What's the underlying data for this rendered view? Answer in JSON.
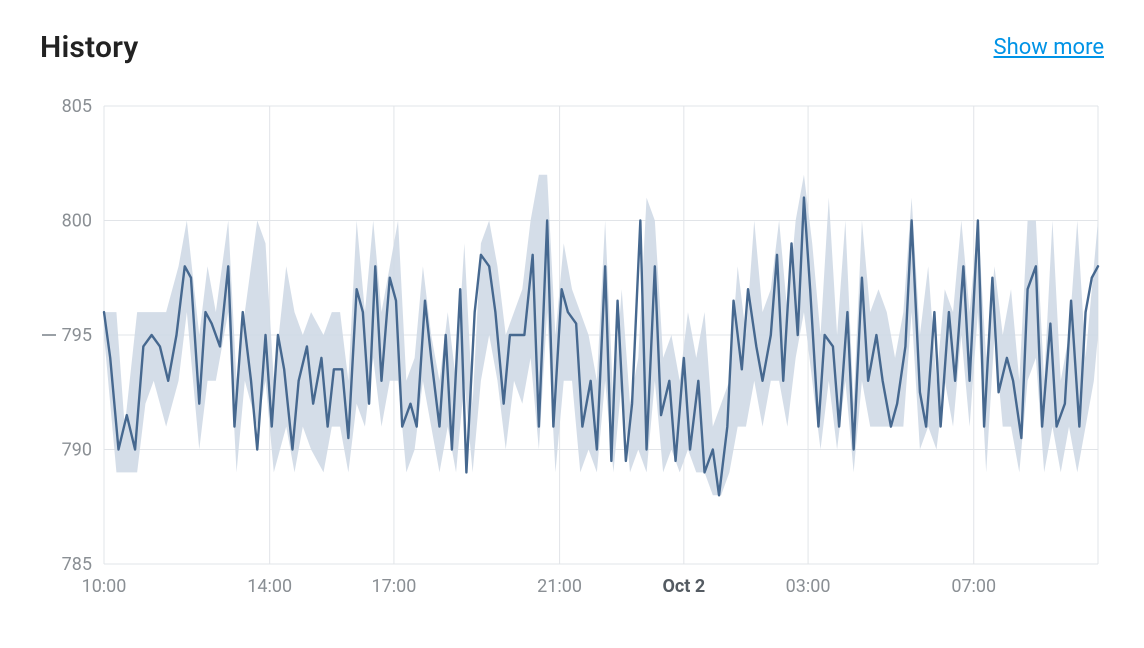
{
  "header": {
    "title": "History",
    "show_more_label": "Show more"
  },
  "chart": {
    "type": "line-with-band",
    "background_color": "#ffffff",
    "plot_border_color": "#e1e4e8",
    "grid_color": "#e1e4e8",
    "grid_width": 1,
    "axis_label_color": "#8a8f94",
    "axis_label_fontsize": 18,
    "x_bold_label_color": "#545b62",
    "band_fill_color": "#cfd9e6",
    "band_fill_opacity": 0.9,
    "line_color": "#46688f",
    "line_width": 2.4,
    "y": {
      "min": 785,
      "max": 805,
      "ticks": [
        785,
        790,
        795,
        800,
        805
      ],
      "reference": 795,
      "reference_dash_color": "#9aa0a6"
    },
    "x": {
      "min": 0,
      "max": 24,
      "ticks": [
        {
          "pos": 0,
          "label": "10:00",
          "bold": false
        },
        {
          "pos": 4,
          "label": "14:00",
          "bold": false
        },
        {
          "pos": 7,
          "label": "17:00",
          "bold": false
        },
        {
          "pos": 11,
          "label": "21:00",
          "bold": false
        },
        {
          "pos": 14,
          "label": "Oct 2",
          "bold": true
        },
        {
          "pos": 17,
          "label": "03:00",
          "bold": false
        },
        {
          "pos": 21,
          "label": "07:00",
          "bold": false
        }
      ]
    },
    "series_main": [
      [
        0.0,
        796.0
      ],
      [
        0.15,
        794.0
      ],
      [
        0.35,
        790.0
      ],
      [
        0.55,
        791.5
      ],
      [
        0.75,
        790.0
      ],
      [
        0.95,
        794.5
      ],
      [
        1.15,
        795.0
      ],
      [
        1.35,
        794.5
      ],
      [
        1.55,
        793.0
      ],
      [
        1.75,
        795.0
      ],
      [
        1.95,
        798.0
      ],
      [
        2.1,
        797.5
      ],
      [
        2.3,
        792.0
      ],
      [
        2.45,
        796.0
      ],
      [
        2.6,
        795.5
      ],
      [
        2.8,
        794.5
      ],
      [
        3.0,
        798.0
      ],
      [
        3.15,
        791.0
      ],
      [
        3.35,
        796.0
      ],
      [
        3.55,
        793.0
      ],
      [
        3.7,
        790.0
      ],
      [
        3.9,
        795.0
      ],
      [
        4.05,
        791.0
      ],
      [
        4.2,
        795.0
      ],
      [
        4.35,
        793.5
      ],
      [
        4.55,
        790.0
      ],
      [
        4.7,
        793.0
      ],
      [
        4.9,
        794.5
      ],
      [
        5.05,
        792.0
      ],
      [
        5.25,
        794.0
      ],
      [
        5.4,
        791.0
      ],
      [
        5.55,
        793.5
      ],
      [
        5.75,
        793.5
      ],
      [
        5.9,
        790.5
      ],
      [
        6.1,
        797.0
      ],
      [
        6.25,
        796.0
      ],
      [
        6.4,
        792.0
      ],
      [
        6.55,
        798.0
      ],
      [
        6.7,
        793.0
      ],
      [
        6.9,
        797.5
      ],
      [
        7.05,
        796.5
      ],
      [
        7.2,
        791.0
      ],
      [
        7.4,
        792.0
      ],
      [
        7.55,
        791.0
      ],
      [
        7.75,
        796.5
      ],
      [
        7.9,
        794.0
      ],
      [
        8.1,
        791.0
      ],
      [
        8.25,
        795.0
      ],
      [
        8.4,
        790.0
      ],
      [
        8.6,
        797.0
      ],
      [
        8.75,
        789.0
      ],
      [
        8.95,
        796.0
      ],
      [
        9.1,
        798.5
      ],
      [
        9.3,
        798.0
      ],
      [
        9.45,
        796.0
      ],
      [
        9.65,
        792.0
      ],
      [
        9.8,
        795.0
      ],
      [
        10.0,
        795.0
      ],
      [
        10.15,
        795.0
      ],
      [
        10.35,
        798.5
      ],
      [
        10.5,
        791.0
      ],
      [
        10.7,
        800.0
      ],
      [
        10.85,
        791.0
      ],
      [
        11.05,
        797.0
      ],
      [
        11.2,
        796.0
      ],
      [
        11.4,
        795.5
      ],
      [
        11.55,
        791.0
      ],
      [
        11.75,
        793.0
      ],
      [
        11.9,
        790.0
      ],
      [
        12.1,
        798.0
      ],
      [
        12.25,
        789.5
      ],
      [
        12.4,
        796.5
      ],
      [
        12.6,
        789.5
      ],
      [
        12.75,
        792.0
      ],
      [
        12.95,
        800.0
      ],
      [
        13.1,
        790.0
      ],
      [
        13.3,
        798.0
      ],
      [
        13.45,
        791.5
      ],
      [
        13.65,
        793.0
      ],
      [
        13.8,
        789.5
      ],
      [
        14.0,
        794.0
      ],
      [
        14.15,
        790.0
      ],
      [
        14.35,
        793.0
      ],
      [
        14.5,
        789.0
      ],
      [
        14.7,
        790.0
      ],
      [
        14.85,
        788.0
      ],
      [
        15.05,
        791.0
      ],
      [
        15.2,
        796.5
      ],
      [
        15.4,
        793.5
      ],
      [
        15.55,
        797.0
      ],
      [
        15.75,
        794.5
      ],
      [
        15.9,
        793.0
      ],
      [
        16.1,
        795.0
      ],
      [
        16.25,
        798.5
      ],
      [
        16.4,
        793.0
      ],
      [
        16.6,
        799.0
      ],
      [
        16.75,
        795.0
      ],
      [
        16.9,
        801.0
      ],
      [
        17.05,
        797.0
      ],
      [
        17.25,
        791.0
      ],
      [
        17.4,
        795.0
      ],
      [
        17.6,
        794.5
      ],
      [
        17.75,
        791.0
      ],
      [
        17.95,
        796.0
      ],
      [
        18.1,
        790.0
      ],
      [
        18.3,
        797.5
      ],
      [
        18.45,
        793.0
      ],
      [
        18.65,
        795.0
      ],
      [
        18.8,
        793.0
      ],
      [
        19.0,
        791.0
      ],
      [
        19.15,
        792.0
      ],
      [
        19.35,
        794.5
      ],
      [
        19.5,
        800.0
      ],
      [
        19.7,
        792.5
      ],
      [
        19.85,
        791.0
      ],
      [
        20.05,
        796.0
      ],
      [
        20.2,
        791.0
      ],
      [
        20.4,
        796.0
      ],
      [
        20.55,
        793.0
      ],
      [
        20.75,
        798.0
      ],
      [
        20.9,
        793.0
      ],
      [
        21.1,
        800.0
      ],
      [
        21.25,
        791.0
      ],
      [
        21.45,
        797.5
      ],
      [
        21.6,
        792.5
      ],
      [
        21.8,
        794.0
      ],
      [
        21.95,
        793.0
      ],
      [
        22.15,
        790.5
      ],
      [
        22.3,
        797.0
      ],
      [
        22.5,
        798.0
      ],
      [
        22.65,
        791.0
      ],
      [
        22.85,
        795.5
      ],
      [
        23.0,
        791.0
      ],
      [
        23.2,
        792.0
      ],
      [
        23.35,
        796.5
      ],
      [
        23.55,
        791.0
      ],
      [
        23.7,
        796.0
      ],
      [
        23.85,
        797.5
      ],
      [
        24.0,
        798.0
      ]
    ],
    "series_band_high": [
      [
        0.0,
        796.0
      ],
      [
        0.3,
        796.0
      ],
      [
        0.5,
        791.0
      ],
      [
        0.8,
        796.0
      ],
      [
        1.0,
        796.0
      ],
      [
        1.2,
        796.0
      ],
      [
        1.5,
        796.0
      ],
      [
        1.8,
        798.0
      ],
      [
        2.0,
        800.0
      ],
      [
        2.3,
        795.0
      ],
      [
        2.5,
        798.0
      ],
      [
        2.7,
        796.0
      ],
      [
        3.0,
        800.0
      ],
      [
        3.2,
        793.0
      ],
      [
        3.4,
        796.0
      ],
      [
        3.7,
        800.0
      ],
      [
        3.9,
        799.0
      ],
      [
        4.1,
        793.0
      ],
      [
        4.4,
        798.0
      ],
      [
        4.6,
        796.0
      ],
      [
        4.8,
        795.0
      ],
      [
        5.0,
        796.0
      ],
      [
        5.3,
        795.0
      ],
      [
        5.5,
        796.0
      ],
      [
        5.7,
        796.0
      ],
      [
        5.9,
        793.0
      ],
      [
        6.1,
        800.0
      ],
      [
        6.3,
        796.0
      ],
      [
        6.5,
        800.0
      ],
      [
        6.7,
        796.0
      ],
      [
        6.9,
        798.0
      ],
      [
        7.1,
        800.0
      ],
      [
        7.3,
        793.0
      ],
      [
        7.5,
        794.0
      ],
      [
        7.7,
        798.0
      ],
      [
        7.9,
        795.0
      ],
      [
        8.1,
        793.0
      ],
      [
        8.3,
        796.0
      ],
      [
        8.5,
        793.0
      ],
      [
        8.7,
        799.0
      ],
      [
        8.9,
        792.0
      ],
      [
        9.1,
        799.0
      ],
      [
        9.3,
        800.0
      ],
      [
        9.5,
        798.0
      ],
      [
        9.7,
        795.0
      ],
      [
        9.9,
        796.0
      ],
      [
        10.1,
        797.0
      ],
      [
        10.3,
        800.0
      ],
      [
        10.5,
        802.0
      ],
      [
        10.7,
        802.0
      ],
      [
        10.9,
        795.0
      ],
      [
        11.1,
        799.0
      ],
      [
        11.3,
        797.0
      ],
      [
        11.5,
        796.0
      ],
      [
        11.7,
        795.0
      ],
      [
        11.9,
        793.0
      ],
      [
        12.1,
        800.0
      ],
      [
        12.3,
        792.0
      ],
      [
        12.5,
        797.0
      ],
      [
        12.7,
        792.0
      ],
      [
        12.9,
        794.0
      ],
      [
        13.1,
        801.0
      ],
      [
        13.3,
        800.0
      ],
      [
        13.5,
        794.0
      ],
      [
        13.7,
        795.0
      ],
      [
        13.9,
        793.0
      ],
      [
        14.1,
        796.0
      ],
      [
        14.3,
        794.0
      ],
      [
        14.5,
        796.0
      ],
      [
        14.7,
        791.0
      ],
      [
        14.9,
        792.0
      ],
      [
        15.1,
        793.0
      ],
      [
        15.3,
        798.0
      ],
      [
        15.5,
        795.0
      ],
      [
        15.7,
        800.0
      ],
      [
        15.9,
        796.0
      ],
      [
        16.1,
        797.0
      ],
      [
        16.3,
        800.0
      ],
      [
        16.5,
        796.0
      ],
      [
        16.7,
        800.0
      ],
      [
        16.9,
        802.0
      ],
      [
        17.1,
        799.0
      ],
      [
        17.3,
        795.0
      ],
      [
        17.5,
        801.0
      ],
      [
        17.7,
        795.0
      ],
      [
        17.9,
        800.0
      ],
      [
        18.1,
        792.0
      ],
      [
        18.3,
        800.0
      ],
      [
        18.5,
        796.0
      ],
      [
        18.7,
        797.0
      ],
      [
        18.9,
        796.0
      ],
      [
        19.1,
        794.0
      ],
      [
        19.3,
        796.0
      ],
      [
        19.5,
        801.0
      ],
      [
        19.7,
        795.0
      ],
      [
        19.9,
        798.0
      ],
      [
        20.1,
        793.0
      ],
      [
        20.3,
        797.0
      ],
      [
        20.5,
        796.0
      ],
      [
        20.7,
        800.0
      ],
      [
        20.9,
        796.0
      ],
      [
        21.1,
        800.0
      ],
      [
        21.3,
        794.0
      ],
      [
        21.5,
        798.0
      ],
      [
        21.7,
        795.0
      ],
      [
        21.9,
        797.0
      ],
      [
        22.1,
        793.0
      ],
      [
        22.3,
        800.0
      ],
      [
        22.5,
        800.0
      ],
      [
        22.7,
        793.0
      ],
      [
        22.9,
        800.0
      ],
      [
        23.1,
        793.0
      ],
      [
        23.3,
        795.0
      ],
      [
        23.5,
        800.0
      ],
      [
        23.7,
        794.0
      ],
      [
        23.9,
        798.0
      ],
      [
        24.0,
        800.0
      ]
    ],
    "series_band_low": [
      [
        0.0,
        795.0
      ],
      [
        0.3,
        789.0
      ],
      [
        0.5,
        789.0
      ],
      [
        0.8,
        789.0
      ],
      [
        1.0,
        792.0
      ],
      [
        1.2,
        793.0
      ],
      [
        1.5,
        791.0
      ],
      [
        1.8,
        793.0
      ],
      [
        2.0,
        796.0
      ],
      [
        2.3,
        790.0
      ],
      [
        2.5,
        793.0
      ],
      [
        2.7,
        793.0
      ],
      [
        3.0,
        796.0
      ],
      [
        3.2,
        789.0
      ],
      [
        3.4,
        793.0
      ],
      [
        3.7,
        791.0
      ],
      [
        3.9,
        793.0
      ],
      [
        4.1,
        789.0
      ],
      [
        4.4,
        791.0
      ],
      [
        4.6,
        789.0
      ],
      [
        4.8,
        791.0
      ],
      [
        5.0,
        790.0
      ],
      [
        5.3,
        789.0
      ],
      [
        5.5,
        791.0
      ],
      [
        5.7,
        791.0
      ],
      [
        5.9,
        789.0
      ],
      [
        6.1,
        792.0
      ],
      [
        6.3,
        791.0
      ],
      [
        6.5,
        794.0
      ],
      [
        6.7,
        791.0
      ],
      [
        6.9,
        793.0
      ],
      [
        7.1,
        793.0
      ],
      [
        7.3,
        789.0
      ],
      [
        7.5,
        790.0
      ],
      [
        7.7,
        793.0
      ],
      [
        7.9,
        791.0
      ],
      [
        8.1,
        789.0
      ],
      [
        8.3,
        791.0
      ],
      [
        8.5,
        789.0
      ],
      [
        8.7,
        793.0
      ],
      [
        8.9,
        789.0
      ],
      [
        9.1,
        793.0
      ],
      [
        9.3,
        795.0
      ],
      [
        9.5,
        793.0
      ],
      [
        9.7,
        790.0
      ],
      [
        9.9,
        793.0
      ],
      [
        10.1,
        792.0
      ],
      [
        10.3,
        794.0
      ],
      [
        10.5,
        790.0
      ],
      [
        10.7,
        796.0
      ],
      [
        10.9,
        789.0
      ],
      [
        11.1,
        793.0
      ],
      [
        11.3,
        793.0
      ],
      [
        11.5,
        789.0
      ],
      [
        11.7,
        790.0
      ],
      [
        11.9,
        789.0
      ],
      [
        12.1,
        793.0
      ],
      [
        12.3,
        789.0
      ],
      [
        12.5,
        793.0
      ],
      [
        12.7,
        789.0
      ],
      [
        12.9,
        790.0
      ],
      [
        13.1,
        789.0
      ],
      [
        13.3,
        793.0
      ],
      [
        13.5,
        789.0
      ],
      [
        13.7,
        790.0
      ],
      [
        13.9,
        789.0
      ],
      [
        14.1,
        790.0
      ],
      [
        14.3,
        789.0
      ],
      [
        14.5,
        789.0
      ],
      [
        14.7,
        788.0
      ],
      [
        14.9,
        788.0
      ],
      [
        15.1,
        789.0
      ],
      [
        15.3,
        791.0
      ],
      [
        15.5,
        791.0
      ],
      [
        15.7,
        793.0
      ],
      [
        15.9,
        791.0
      ],
      [
        16.1,
        793.0
      ],
      [
        16.3,
        793.0
      ],
      [
        16.5,
        791.0
      ],
      [
        16.7,
        794.0
      ],
      [
        16.9,
        796.0
      ],
      [
        17.1,
        793.0
      ],
      [
        17.3,
        790.0
      ],
      [
        17.5,
        793.0
      ],
      [
        17.7,
        790.0
      ],
      [
        17.9,
        793.0
      ],
      [
        18.1,
        789.0
      ],
      [
        18.3,
        793.0
      ],
      [
        18.5,
        791.0
      ],
      [
        18.7,
        791.0
      ],
      [
        18.9,
        791.0
      ],
      [
        19.1,
        791.0
      ],
      [
        19.3,
        791.0
      ],
      [
        19.5,
        796.0
      ],
      [
        19.7,
        790.0
      ],
      [
        19.9,
        791.0
      ],
      [
        20.1,
        790.0
      ],
      [
        20.3,
        793.0
      ],
      [
        20.5,
        791.0
      ],
      [
        20.7,
        795.0
      ],
      [
        20.9,
        791.0
      ],
      [
        21.1,
        796.0
      ],
      [
        21.3,
        789.0
      ],
      [
        21.5,
        795.0
      ],
      [
        21.7,
        791.0
      ],
      [
        21.9,
        791.0
      ],
      [
        22.1,
        789.0
      ],
      [
        22.3,
        793.0
      ],
      [
        22.5,
        794.0
      ],
      [
        22.7,
        789.0
      ],
      [
        22.9,
        791.0
      ],
      [
        23.1,
        789.0
      ],
      [
        23.3,
        791.0
      ],
      [
        23.5,
        789.0
      ],
      [
        23.7,
        791.0
      ],
      [
        23.9,
        793.0
      ],
      [
        24.0,
        795.0
      ]
    ]
  }
}
